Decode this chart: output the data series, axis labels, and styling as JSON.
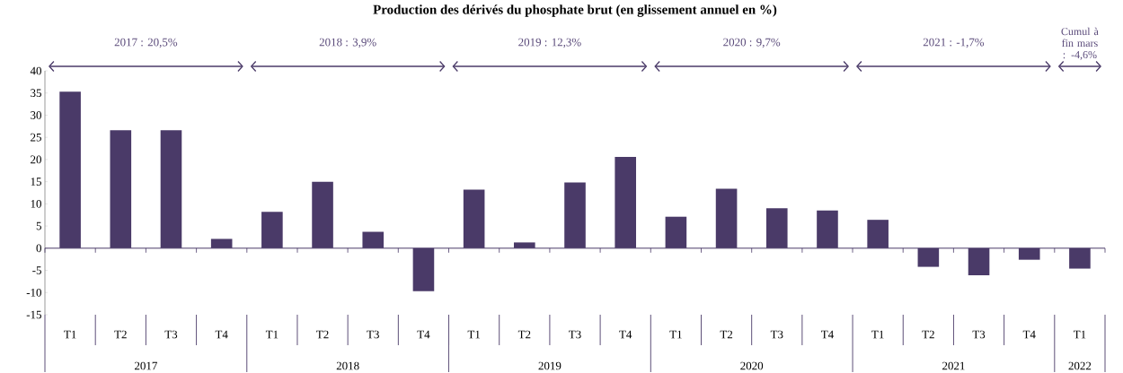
{
  "chart_data": {
    "type": "bar",
    "title": "Production des dérivés du phosphate brut (en glissement annuel en %)",
    "categories": [
      "T1",
      "T2",
      "T3",
      "T4",
      "T1",
      "T2",
      "T3",
      "T4",
      "T1",
      "T2",
      "T3",
      "T4",
      "T1",
      "T2",
      "T3",
      "T4",
      "T1",
      "T2",
      "T3",
      "T4",
      "T1"
    ],
    "values": [
      35.3,
      26.6,
      26.6,
      2.1,
      8.2,
      15.0,
      3.7,
      -9.7,
      13.2,
      1.3,
      14.8,
      20.6,
      7.1,
      13.4,
      9.0,
      8.5,
      6.4,
      -4.2,
      -6.1,
      -2.6,
      -4.6
    ],
    "color": "#4a3a68",
    "ref_lines": [
      {
        "axis": "y",
        "value": 0,
        "color": "#4a3a68"
      }
    ],
    "ylim": [
      -15,
      40
    ],
    "yticks": [
      -15,
      -10,
      -5,
      0,
      5,
      10,
      15,
      20,
      25,
      30,
      35,
      40
    ],
    "annotations": [
      "2017",
      "2018",
      "2019",
      "2020",
      "2021",
      "2022",
      "2017 : 20,5%",
      "2018 : 3,9%",
      "2019 : 12,3%",
      "2020 : 9,7%",
      "2021 : -1,7%",
      "Cumul à fin mars : -4,6%"
    ]
  }
}
